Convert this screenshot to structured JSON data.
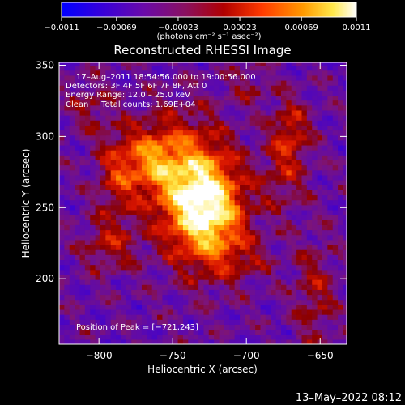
{
  "chart_data": {
    "type": "heatmap",
    "title": "Reconstructed RHESSI Image",
    "xlabel": "Heliocentric X (arcsec)",
    "ylabel": "Heliocentric Y (arcsec)",
    "xlim": [
      -827,
      -632
    ],
    "ylim": [
      154,
      352
    ],
    "x_ticks": [
      "−800",
      "−750",
      "−700",
      "−650"
    ],
    "x_tick_values": [
      -800,
      -750,
      -700,
      -650
    ],
    "y_ticks": [
      "200",
      "250",
      "300",
      "350"
    ],
    "y_tick_values": [
      200,
      250,
      300,
      350
    ],
    "colorbar": {
      "ticks": [
        "−0.0011",
        "−0.00069",
        "−0.00023",
        "0.00023",
        "0.00069",
        "0.0011"
      ],
      "tick_values": [
        -0.0011,
        -0.00069,
        -0.00023,
        0.00023,
        0.00069,
        0.0011
      ],
      "range": [
        -0.0011,
        0.0011
      ],
      "units_label": "(photons cm⁻² s⁻¹ asec⁻²)",
      "colors": [
        "#0000ff",
        "#5b00b5",
        "#7d1ea0",
        "#9a1414",
        "#c80000",
        "#ff5a00",
        "#ffa500",
        "#ffff60",
        "#ffffff"
      ]
    },
    "annotations": [
      "17–Aug–2011 18:54:56.000 to 19:00:56.000",
      "Detectors: 3F 4F 5F 6F 7F 8F, Att 0",
      "Energy Range: 12.0 – 25.0 keV",
      "Clean     Total counts: 1.69E+04"
    ],
    "peak_label": "Position of Peak = [−721,243]",
    "peak": [
      -721,
      243
    ],
    "sources": [
      {
        "x": -726,
        "y": 245,
        "amp": 1.0,
        "sx": 17,
        "sy": 27
      },
      {
        "x": -744,
        "y": 268,
        "amp": 0.7,
        "sx": 18,
        "sy": 30
      },
      {
        "x": -767,
        "y": 283,
        "amp": 0.55,
        "sx": 12,
        "sy": 16
      },
      {
        "x": -789,
        "y": 272,
        "amp": 0.45,
        "sx": 10,
        "sy": 22
      },
      {
        "x": -672,
        "y": 302,
        "amp": 0.45,
        "sx": 9,
        "sy": 16
      },
      {
        "x": -677,
        "y": 270,
        "amp": 0.28,
        "sx": 11,
        "sy": 18
      },
      {
        "x": -795,
        "y": 222,
        "amp": 0.35,
        "sx": 13,
        "sy": 13
      },
      {
        "x": -808,
        "y": 320,
        "amp": 0.25,
        "sx": 10,
        "sy": 14
      },
      {
        "x": -700,
        "y": 334,
        "amp": 0.22,
        "sx": 10,
        "sy": 10
      },
      {
        "x": -655,
        "y": 188,
        "amp": 0.32,
        "sx": 10,
        "sy": 26
      },
      {
        "x": -702,
        "y": 212,
        "amp": 0.2,
        "sx": 14,
        "sy": 10
      }
    ],
    "background_level": -0.25
  },
  "footer": {
    "date": "13–May–2022 08:12"
  }
}
